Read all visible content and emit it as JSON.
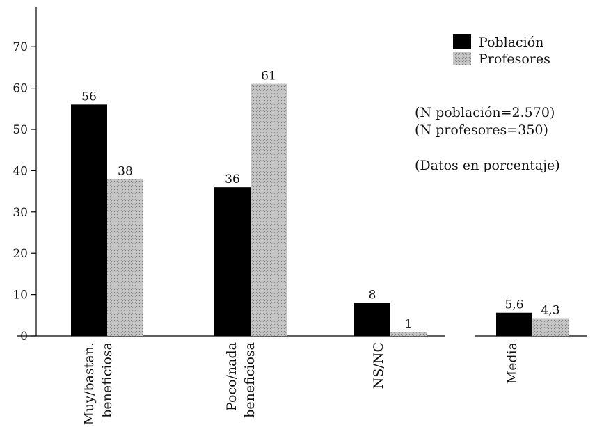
{
  "chart_data": {
    "type": "bar",
    "categories": [
      [
        "Muy/bastan.",
        "beneficiosa"
      ],
      [
        "Poco/nada",
        "beneficiosa"
      ],
      [
        "NS/NC"
      ],
      [
        "Media"
      ]
    ],
    "series": [
      {
        "name": "Población",
        "values": [
          56,
          36,
          8,
          5.6
        ],
        "labels": [
          "56",
          "36",
          "8",
          "5,6"
        ],
        "color": "#000000"
      },
      {
        "name": "Profesores",
        "values": [
          38,
          61,
          1,
          4.3
        ],
        "labels": [
          "38",
          "61",
          "1",
          "4,3"
        ],
        "color": "#bfbfbf"
      }
    ],
    "yticks": [
      0,
      10,
      20,
      30,
      40,
      50,
      60,
      70
    ],
    "ylim": [
      0,
      70
    ],
    "legend_position": "top-right",
    "grid": false,
    "notes": [
      "(N población=2.570)",
      "(N profesores=350)",
      "(Datos en porcentaje)"
    ]
  }
}
